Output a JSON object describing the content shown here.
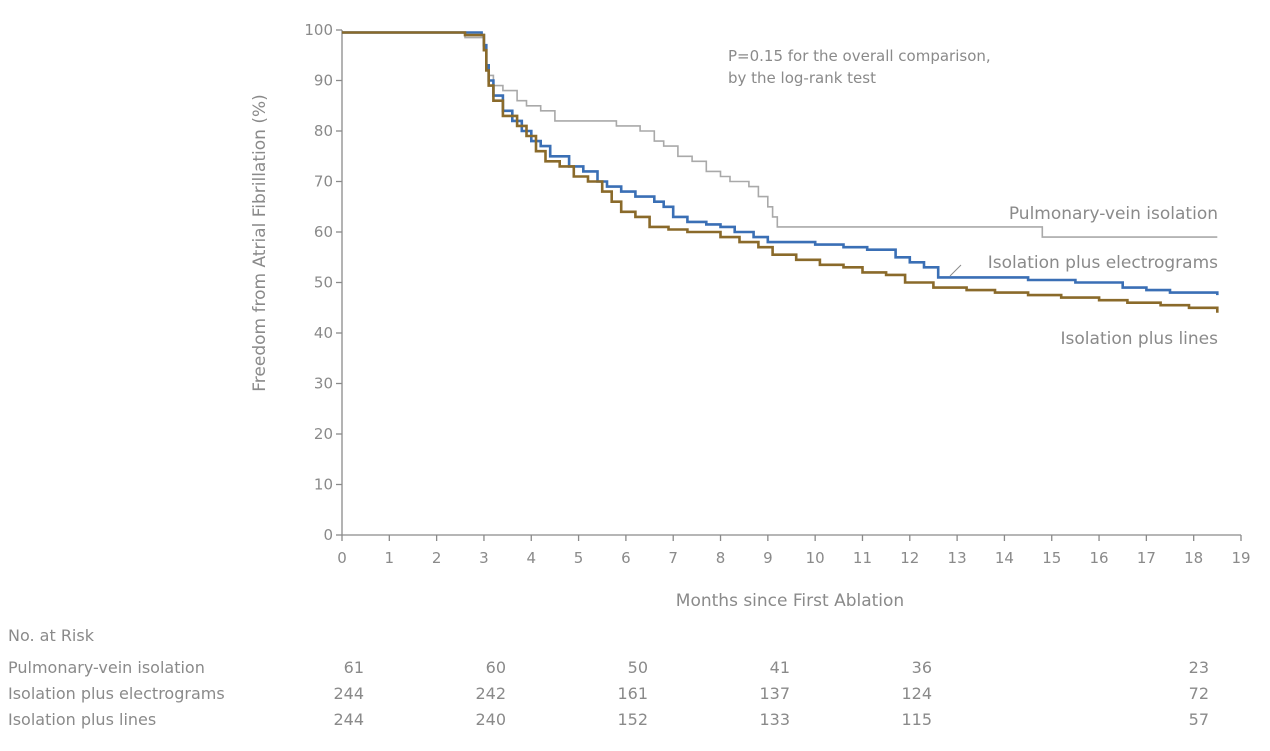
{
  "chart_data": {
    "type": "line",
    "title": "",
    "xlabel": "Months since First Ablation",
    "ylabel": "Freedom from Atrial Fibrillation (%)",
    "xlim": [
      0,
      19
    ],
    "ylim": [
      0,
      100
    ],
    "x_ticks": [
      "0",
      "1",
      "2",
      "3",
      "4",
      "5",
      "6",
      "7",
      "8",
      "9",
      "10",
      "11",
      "12",
      "13",
      "14",
      "15",
      "16",
      "17",
      "18",
      "19"
    ],
    "y_ticks": [
      "0",
      "10",
      "20",
      "30",
      "40",
      "50",
      "60",
      "70",
      "80",
      "90",
      "100"
    ],
    "annotation": [
      "P=0.15 for the overall comparison,",
      "by the log-rank test"
    ],
    "grid": false,
    "series": [
      {
        "name": "Pulmonary-vein isolation",
        "color": "#a9a9a9",
        "points": [
          [
            0,
            99.5
          ],
          [
            2.6,
            99.5
          ],
          [
            2.6,
            98.5
          ],
          [
            2.95,
            98.5
          ],
          [
            3.0,
            96
          ],
          [
            3.05,
            93
          ],
          [
            3.1,
            91
          ],
          [
            3.2,
            89
          ],
          [
            3.4,
            88
          ],
          [
            3.7,
            86
          ],
          [
            3.9,
            85
          ],
          [
            4.2,
            84
          ],
          [
            4.5,
            82
          ],
          [
            5.2,
            82
          ],
          [
            5.8,
            81
          ],
          [
            6.3,
            80
          ],
          [
            6.6,
            78
          ],
          [
            6.8,
            77
          ],
          [
            7.1,
            75
          ],
          [
            7.4,
            74
          ],
          [
            7.7,
            72
          ],
          [
            8.0,
            71
          ],
          [
            8.2,
            70
          ],
          [
            8.6,
            69
          ],
          [
            8.8,
            67
          ],
          [
            9.0,
            65
          ],
          [
            9.1,
            63
          ],
          [
            9.2,
            61
          ],
          [
            14.8,
            61
          ],
          [
            14.8,
            59
          ],
          [
            18.5,
            59
          ]
        ]
      },
      {
        "name": "Isolation plus electrograms",
        "color": "#3a6fb5",
        "points": [
          [
            0,
            99.5
          ],
          [
            2.85,
            99.5
          ],
          [
            2.95,
            99
          ],
          [
            3.0,
            97
          ],
          [
            3.05,
            93
          ],
          [
            3.1,
            90
          ],
          [
            3.2,
            87
          ],
          [
            3.4,
            84
          ],
          [
            3.6,
            82
          ],
          [
            3.8,
            80
          ],
          [
            4.0,
            78
          ],
          [
            4.2,
            77
          ],
          [
            4.4,
            75
          ],
          [
            4.8,
            73
          ],
          [
            5.1,
            72
          ],
          [
            5.4,
            70
          ],
          [
            5.6,
            69
          ],
          [
            5.9,
            68
          ],
          [
            6.2,
            67
          ],
          [
            6.6,
            66
          ],
          [
            6.8,
            65
          ],
          [
            7.0,
            63
          ],
          [
            7.3,
            62
          ],
          [
            7.7,
            61.5
          ],
          [
            8.0,
            61
          ],
          [
            8.3,
            60
          ],
          [
            8.7,
            59
          ],
          [
            9.0,
            58
          ],
          [
            9.6,
            58
          ],
          [
            10.0,
            57.5
          ],
          [
            10.6,
            57
          ],
          [
            11.1,
            56.5
          ],
          [
            11.7,
            55
          ],
          [
            12.0,
            54
          ],
          [
            12.3,
            53
          ],
          [
            12.6,
            51
          ],
          [
            13.5,
            51
          ],
          [
            14.5,
            50.5
          ],
          [
            15.5,
            50
          ],
          [
            16.5,
            49
          ],
          [
            17.0,
            48.5
          ],
          [
            17.5,
            48
          ],
          [
            18.5,
            47.5
          ]
        ]
      },
      {
        "name": "Isolation plus lines",
        "color": "#8a6a2a",
        "points": [
          [
            0,
            99.5
          ],
          [
            2.55,
            99.5
          ],
          [
            2.6,
            99
          ],
          [
            2.95,
            99
          ],
          [
            3.0,
            96
          ],
          [
            3.05,
            92
          ],
          [
            3.1,
            89
          ],
          [
            3.2,
            86
          ],
          [
            3.4,
            83
          ],
          [
            3.7,
            81
          ],
          [
            3.9,
            79
          ],
          [
            4.1,
            76
          ],
          [
            4.3,
            74
          ],
          [
            4.6,
            73
          ],
          [
            4.9,
            71
          ],
          [
            5.2,
            70
          ],
          [
            5.5,
            68
          ],
          [
            5.7,
            66
          ],
          [
            5.9,
            64
          ],
          [
            6.2,
            63
          ],
          [
            6.5,
            61
          ],
          [
            6.9,
            60.5
          ],
          [
            7.3,
            60
          ],
          [
            7.8,
            60
          ],
          [
            8.0,
            59
          ],
          [
            8.4,
            58
          ],
          [
            8.8,
            57
          ],
          [
            9.1,
            55.5
          ],
          [
            9.6,
            54.5
          ],
          [
            10.1,
            53.5
          ],
          [
            10.6,
            53
          ],
          [
            11.0,
            52
          ],
          [
            11.5,
            51.5
          ],
          [
            11.9,
            50
          ],
          [
            12.5,
            49
          ],
          [
            13.2,
            48.5
          ],
          [
            13.8,
            48
          ],
          [
            14.5,
            47.5
          ],
          [
            15.2,
            47
          ],
          [
            16.0,
            46.5
          ],
          [
            16.6,
            46
          ],
          [
            17.3,
            45.5
          ],
          [
            17.9,
            45
          ],
          [
            18.5,
            44
          ]
        ]
      }
    ]
  },
  "series_labels": {
    "pvi": "Pulmonary-vein isolation",
    "electrograms": "Isolation plus electrograms",
    "lines": "Isolation plus lines"
  },
  "risk_table": {
    "heading": "No. at Risk",
    "rows": [
      {
        "label": "Pulmonary-vein isolation",
        "values": [
          "61",
          "60",
          "50",
          "41",
          "36",
          "23"
        ]
      },
      {
        "label": "Isolation plus electrograms",
        "values": [
          "244",
          "242",
          "161",
          "137",
          "124",
          "72"
        ]
      },
      {
        "label": "Isolation plus lines",
        "values": [
          "244",
          "240",
          "152",
          "133",
          "115",
          "57"
        ]
      }
    ]
  }
}
